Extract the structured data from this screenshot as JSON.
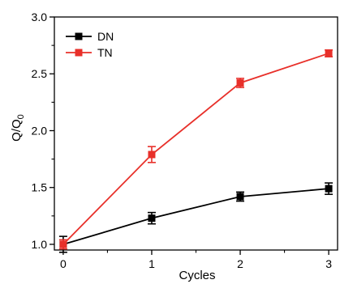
{
  "chart_data": {
    "type": "line",
    "xlabel": "Cycles",
    "ylabel_main": "Q/Q",
    "ylabel_sub": "0",
    "x": [
      0,
      1,
      2,
      3
    ],
    "xlim": [
      -0.1,
      3.1
    ],
    "ylim": [
      0.95,
      3.0
    ],
    "x_ticks": [
      0,
      1,
      2,
      3
    ],
    "y_ticks": [
      1.0,
      1.5,
      2.0,
      2.5,
      3.0
    ],
    "x_tick_labels": [
      "0",
      "1",
      "2",
      "3"
    ],
    "y_tick_labels": [
      "1.0",
      "1.5",
      "2.0",
      "2.5",
      "3.0"
    ],
    "grid": false,
    "legend_position": "top-left",
    "series": [
      {
        "name": "DN",
        "color": "#000000",
        "marker": "square",
        "values": [
          1.0,
          1.23,
          1.42,
          1.49
        ],
        "errors": [
          0.07,
          0.05,
          0.04,
          0.05
        ]
      },
      {
        "name": "TN",
        "color": "#e8302a",
        "marker": "square",
        "values": [
          1.0,
          1.79,
          2.42,
          2.68
        ],
        "errors": [
          0.04,
          0.07,
          0.04,
          0.03
        ]
      }
    ]
  }
}
